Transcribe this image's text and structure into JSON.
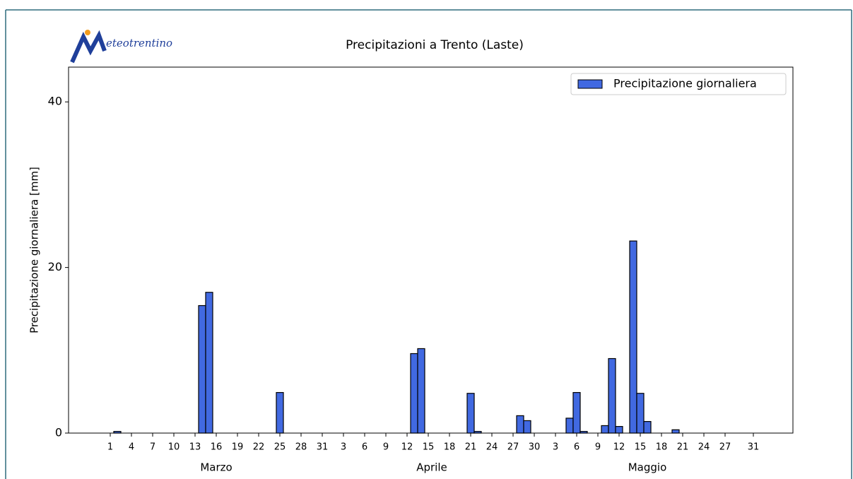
{
  "logo": "eteotrentino",
  "chart_data": {
    "type": "bar",
    "title": "Precipitazioni a Trento (Laste)",
    "ylabel": "Precipitazione giornaliera [mm]",
    "ylim": [
      0,
      44.2
    ],
    "yticks": [
      0,
      20,
      40
    ],
    "legend": "upper right",
    "groups": [
      {
        "label": "Marzo",
        "categories": [
          1,
          null,
          null,
          4,
          null,
          null,
          7,
          null,
          null,
          10,
          null,
          null,
          13,
          null,
          null,
          16,
          null,
          null,
          19,
          null,
          null,
          22,
          null,
          null,
          25,
          null,
          null,
          28,
          null,
          null,
          31
        ]
      },
      {
        "label": "Aprile",
        "categories": [
          null,
          null,
          3,
          null,
          null,
          6,
          null,
          null,
          9,
          null,
          null,
          12,
          null,
          null,
          15,
          null,
          null,
          18,
          null,
          null,
          21,
          null,
          null,
          24,
          null,
          null,
          27,
          null,
          null,
          30
        ]
      },
      {
        "label": "Maggio",
        "categories": [
          null,
          null,
          3,
          null,
          null,
          6,
          null,
          null,
          9,
          null,
          null,
          12,
          null,
          null,
          15,
          null,
          null,
          18,
          null,
          null,
          21,
          null,
          null,
          24,
          null,
          null,
          27,
          null,
          null,
          null,
          31
        ]
      }
    ],
    "series": [
      {
        "name": "Precipitazione giornaliera",
        "color": "#4169e1",
        "edgecolor": "#000000",
        "values": [
          0,
          0.2,
          0,
          0,
          0,
          0,
          0,
          0,
          0,
          0,
          0,
          0,
          0,
          15.4,
          17,
          0,
          0,
          0,
          0,
          0,
          0,
          0,
          0,
          0,
          4.9,
          0,
          0,
          0,
          0,
          0,
          0,
          0,
          0,
          0,
          0,
          0,
          0,
          0,
          0,
          0,
          0,
          0,
          0,
          9.6,
          10.2,
          0,
          0,
          0,
          0,
          0,
          0,
          4.8,
          0.2,
          0,
          0,
          0,
          0,
          0,
          2.1,
          1.5,
          0,
          0,
          0,
          0,
          0,
          1.8,
          4.9,
          0.2,
          0,
          0,
          0.9,
          9,
          0.8,
          0,
          23.2,
          4.8,
          1.4,
          0,
          0,
          0,
          0.4,
          0,
          0,
          0,
          0,
          0,
          0,
          0,
          0,
          0,
          0,
          0
        ]
      }
    ]
  }
}
